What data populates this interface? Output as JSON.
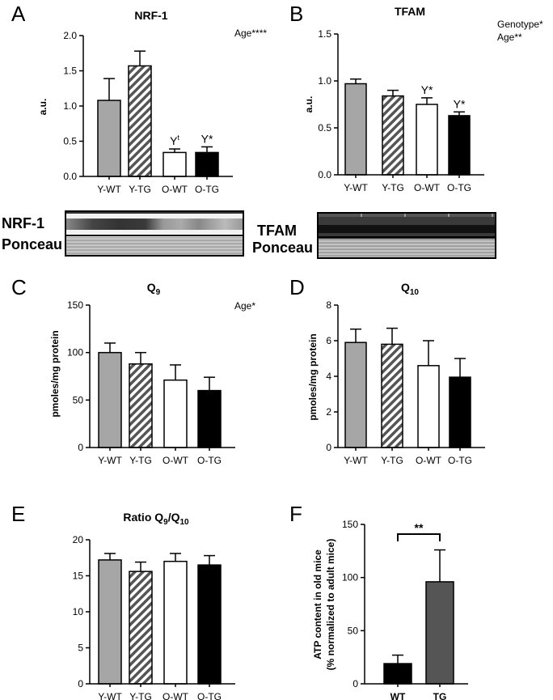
{
  "panels": {
    "A": {
      "letter": "A",
      "title": "NRF-1",
      "ylabel": "a.u.",
      "annotation": "Age****"
    },
    "B": {
      "letter": "B",
      "title": "TFAM",
      "ylabel": "a.u.",
      "annotation_line1": "Genotype*",
      "annotation_line2": "Age**"
    },
    "C": {
      "letter": "C",
      "title": "Q",
      "title_sub": "9",
      "ylabel": "pmoles/mg protein",
      "annotation": "Age*"
    },
    "D": {
      "letter": "D",
      "title": "Q",
      "title_sub": "10",
      "ylabel": "pmoles/mg protein"
    },
    "E": {
      "letter": "E",
      "title_prefix": "Ratio Q",
      "title_sub1": "9",
      "title_slash": "/Q",
      "title_sub2": "10"
    },
    "F": {
      "letter": "F",
      "ylabel_line1": "ATP content in old mice",
      "ylabel_line2": "(% normalized to adult mice)",
      "significance": "**"
    }
  },
  "blots": {
    "nrf1_label": "NRF-1",
    "nrf1_ponceau": "Ponceau",
    "tfam_label": "TFAM",
    "tfam_ponceau": "Ponceau"
  },
  "colors": {
    "Y-WT": "#a6a6a6",
    "Y-TG": "hatched",
    "O-WT": "#ffffff",
    "O-TG": "#000000",
    "WT": "#000000",
    "TG": "#555555"
  },
  "chart_data": [
    {
      "panel": "A",
      "type": "bar",
      "categories": [
        "Y-WT",
        "Y-TG",
        "O-WT",
        "O-TG"
      ],
      "values": [
        1.08,
        1.57,
        0.34,
        0.34
      ],
      "errors": [
        0.31,
        0.21,
        0.05,
        0.08
      ],
      "bar_labels": [
        "",
        "",
        "Yt",
        "Y*"
      ],
      "ylim": [
        0,
        2.0
      ],
      "yticks": [
        "0.0",
        "0.5",
        "1.0",
        "1.5",
        "2.0"
      ],
      "ylabel": "a.u.",
      "title": "NRF-1"
    },
    {
      "panel": "B",
      "type": "bar",
      "categories": [
        "Y-WT",
        "Y-TG",
        "O-WT",
        "O-TG"
      ],
      "values": [
        0.97,
        0.84,
        0.75,
        0.63
      ],
      "errors": [
        0.05,
        0.06,
        0.07,
        0.04
      ],
      "bar_labels": [
        "",
        "",
        "Y*",
        "Y*"
      ],
      "ylim": [
        0,
        1.5
      ],
      "yticks": [
        "0.0",
        "0.5",
        "1.0",
        "1.5"
      ],
      "ylabel": "a.u.",
      "title": "TFAM"
    },
    {
      "panel": "C",
      "type": "bar",
      "categories": [
        "Y-WT",
        "Y-TG",
        "O-WT",
        "O-TG"
      ],
      "values": [
        100,
        88,
        71,
        60
      ],
      "errors": [
        10,
        12,
        16,
        14
      ],
      "ylim": [
        0,
        150
      ],
      "yticks": [
        "0",
        "50",
        "100",
        "150"
      ],
      "ylabel": "pmoles/mg protein",
      "title": "Q9"
    },
    {
      "panel": "D",
      "type": "bar",
      "categories": [
        "Y-WT",
        "Y-TG",
        "O-WT",
        "O-TG"
      ],
      "values": [
        5.9,
        5.8,
        4.6,
        3.95
      ],
      "errors": [
        0.75,
        0.9,
        1.4,
        1.05
      ],
      "ylim": [
        0,
        8
      ],
      "yticks": [
        "0",
        "2",
        "4",
        "6",
        "8"
      ],
      "ylabel": "pmoles/mg protein",
      "title": "Q10"
    },
    {
      "panel": "E",
      "type": "bar",
      "categories": [
        "Y-WT",
        "Y-TG",
        "O-WT",
        "O-TG"
      ],
      "values": [
        17.2,
        15.6,
        17.0,
        16.5
      ],
      "errors": [
        0.9,
        1.3,
        1.1,
        1.3
      ],
      "ylim": [
        0,
        20
      ],
      "yticks": [
        "0",
        "5",
        "10",
        "15",
        "20"
      ],
      "title": "Ratio Q9/Q10"
    },
    {
      "panel": "F",
      "type": "bar",
      "categories": [
        "WT",
        "TG"
      ],
      "values": [
        19,
        96
      ],
      "errors": [
        8,
        30
      ],
      "ylim": [
        0,
        150
      ],
      "yticks": [
        "0",
        "50",
        "100",
        "150"
      ],
      "ylabel": "ATP content in old mice (% normalized to adult mice)",
      "significance": "**"
    }
  ]
}
